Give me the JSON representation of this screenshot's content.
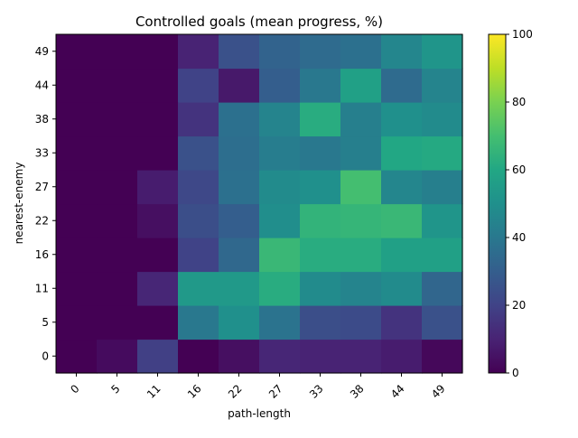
{
  "chart_data": {
    "type": "heatmap",
    "title": "Controlled goals (mean progress, %)",
    "xlabel": "path-length",
    "ylabel": "nearest-enemy",
    "x_categories": [
      "0",
      "5",
      "11",
      "16",
      "22",
      "27",
      "33",
      "38",
      "44",
      "49"
    ],
    "y_categories": [
      "0",
      "5",
      "11",
      "16",
      "22",
      "27",
      "33",
      "38",
      "44",
      "49"
    ],
    "values": [
      [
        0,
        3,
        19,
        0,
        4,
        11,
        10,
        10,
        8,
        2
      ],
      [
        0,
        0,
        0,
        40,
        50,
        38,
        24,
        23,
        15,
        25
      ],
      [
        0,
        0,
        11,
        54,
        54,
        62,
        48,
        45,
        48,
        33
      ],
      [
        0,
        0,
        0,
        20,
        34,
        67,
        62,
        62,
        57,
        57
      ],
      [
        0,
        0,
        4,
        24,
        30,
        49,
        65,
        66,
        67,
        52
      ],
      [
        0,
        0,
        8,
        22,
        37,
        48,
        50,
        70,
        46,
        43
      ],
      [
        0,
        0,
        0,
        25,
        36,
        42,
        40,
        43,
        60,
        61
      ],
      [
        0,
        0,
        0,
        15,
        37,
        45,
        62,
        43,
        50,
        48
      ],
      [
        0,
        0,
        0,
        20,
        7,
        30,
        40,
        57,
        35,
        45
      ],
      [
        0,
        0,
        0,
        10,
        25,
        32,
        35,
        37,
        46,
        52
      ]
    ],
    "colorbar": {
      "min": 0,
      "max": 100,
      "ticks": [
        "0",
        "20",
        "40",
        "60",
        "80",
        "100"
      ],
      "colormap": "viridis"
    },
    "grid": false
  }
}
